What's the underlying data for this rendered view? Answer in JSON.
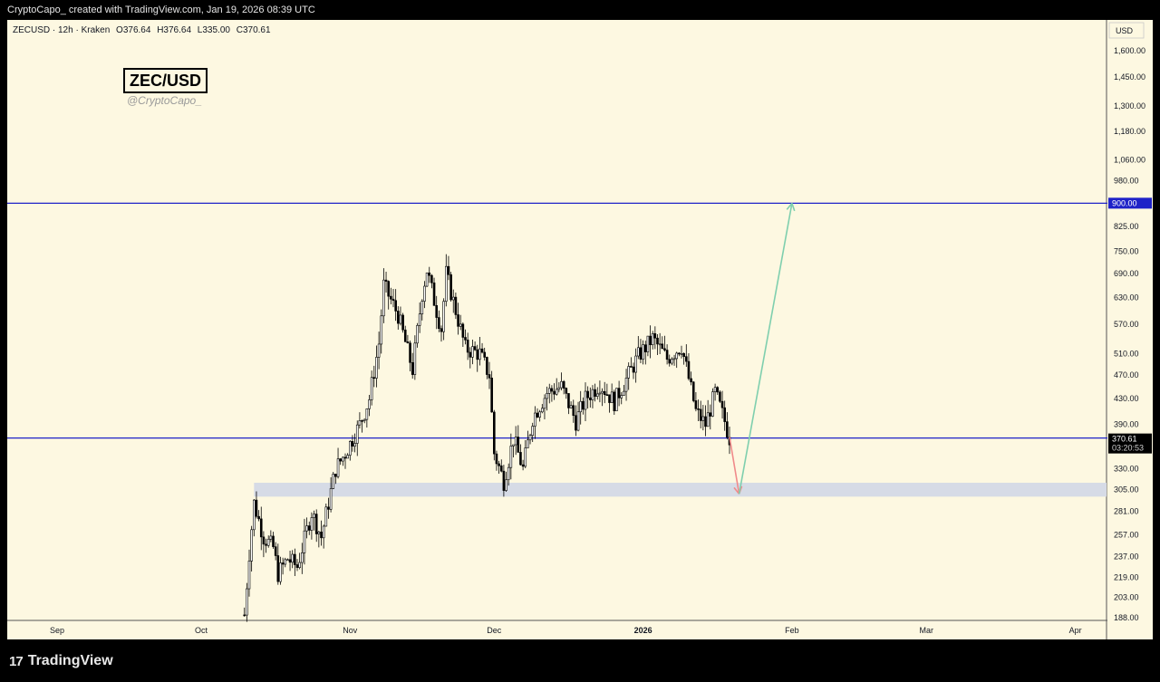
{
  "header": {
    "attribution": "CryptoCapo_ created with TradingView.com, Jan 19, 2026 08:39 UTC"
  },
  "legend": {
    "symbol": "ZECUSD · 12h · Kraken",
    "open": "O376.64",
    "high": "H376.64",
    "low": "L335.00",
    "close": "C370.61"
  },
  "watermark": {
    "title": "ZEC/USD",
    "handle": "@CryptoCapo_"
  },
  "brand": {
    "logo": "17",
    "name": "TradingView"
  },
  "colors": {
    "background": "#fdf8e1",
    "candle": "#000000",
    "level_line": "#1e22c8",
    "arrow_down": "#f08a8a",
    "arrow_up": "#7fcfae",
    "support_zone": "#d6dbe6"
  },
  "chart_data": {
    "type": "candlestick",
    "symbol": "ZECUSD",
    "timeframe": "12h",
    "exchange": "Kraken",
    "currency": "USD",
    "scale": "log",
    "ylim": [
      188,
      1750
    ],
    "x_ticks": [
      "Sep",
      "Oct",
      "Nov",
      "Dec",
      "2026",
      "Feb",
      "Mar",
      "Apr"
    ],
    "y_ticks": [
      188,
      203,
      219,
      237,
      257,
      281,
      305,
      330,
      390,
      430,
      470,
      510,
      570,
      630,
      690,
      750,
      825,
      900,
      980,
      1060,
      1180,
      1300,
      1450,
      1600
    ],
    "y_tick_labels": [
      "188.00",
      "203.00",
      "219.00",
      "237.00",
      "257.00",
      "281.00",
      "305.00",
      "330.00",
      "390.00",
      "430.00",
      "470.00",
      "510.00",
      "570.00",
      "630.00",
      "690.00",
      "750.00",
      "825.00",
      "900.00",
      "980.00",
      "1,060.00",
      "1,180.00",
      "1,300.00",
      "1,450.00",
      "1,600.00"
    ],
    "price_path": [
      [
        "2025-10-10",
        190
      ],
      [
        "2025-10-11",
        240
      ],
      [
        "2025-10-12",
        290
      ],
      [
        "2025-10-14",
        255
      ],
      [
        "2025-10-16",
        245
      ],
      [
        "2025-10-17",
        222
      ],
      [
        "2025-10-19",
        235
      ],
      [
        "2025-10-21",
        228
      ],
      [
        "2025-10-24",
        280
      ],
      [
        "2025-10-26",
        255
      ],
      [
        "2025-10-29",
        330
      ],
      [
        "2025-10-31",
        350
      ],
      [
        "2025-11-03",
        390
      ],
      [
        "2025-11-05",
        430
      ],
      [
        "2025-11-07",
        530
      ],
      [
        "2025-11-08",
        660
      ],
      [
        "2025-11-11",
        590
      ],
      [
        "2025-11-14",
        480
      ],
      [
        "2025-11-16",
        640
      ],
      [
        "2025-11-17",
        700
      ],
      [
        "2025-11-19",
        600
      ],
      [
        "2025-11-20",
        560
      ],
      [
        "2025-11-21",
        690
      ],
      [
        "2025-11-23",
        600
      ],
      [
        "2025-11-25",
        520
      ],
      [
        "2025-11-28",
        510
      ],
      [
        "2025-11-30",
        470
      ],
      [
        "2025-12-01",
        350
      ],
      [
        "2025-12-03",
        315
      ],
      [
        "2025-12-05",
        370
      ],
      [
        "2025-12-07",
        330
      ],
      [
        "2025-12-09",
        400
      ],
      [
        "2025-12-12",
        440
      ],
      [
        "2025-12-15",
        450
      ],
      [
        "2025-12-18",
        395
      ],
      [
        "2025-12-20",
        430
      ],
      [
        "2025-12-23",
        455
      ],
      [
        "2025-12-26",
        425
      ],
      [
        "2025-12-28",
        455
      ],
      [
        "2025-12-31",
        505
      ],
      [
        "2026-01-03",
        540
      ],
      [
        "2026-01-06",
        500
      ],
      [
        "2026-01-09",
        525
      ],
      [
        "2026-01-12",
        410
      ],
      [
        "2026-01-14",
        390
      ],
      [
        "2026-01-16",
        440
      ],
      [
        "2026-01-18",
        395
      ],
      [
        "2026-01-19",
        370.61
      ]
    ],
    "last_price": 370.61,
    "last_price_label": "370.61",
    "countdown_label": "03:20:53",
    "levels": [
      {
        "price": 900,
        "label": "900.00",
        "color": "#1e22c8"
      },
      {
        "price": 370.61,
        "color": "#1e22c8"
      }
    ],
    "support_zone": {
      "from": 297,
      "to": 313
    },
    "projection": [
      {
        "from": [
          "2026-01-19",
          372
        ],
        "to": [
          "2026-01-21",
          300
        ],
        "color": "#f08a8a"
      },
      {
        "from": [
          "2026-01-21",
          300
        ],
        "to": [
          "2026-02-01",
          900
        ],
        "color": "#7fcfae"
      }
    ]
  }
}
